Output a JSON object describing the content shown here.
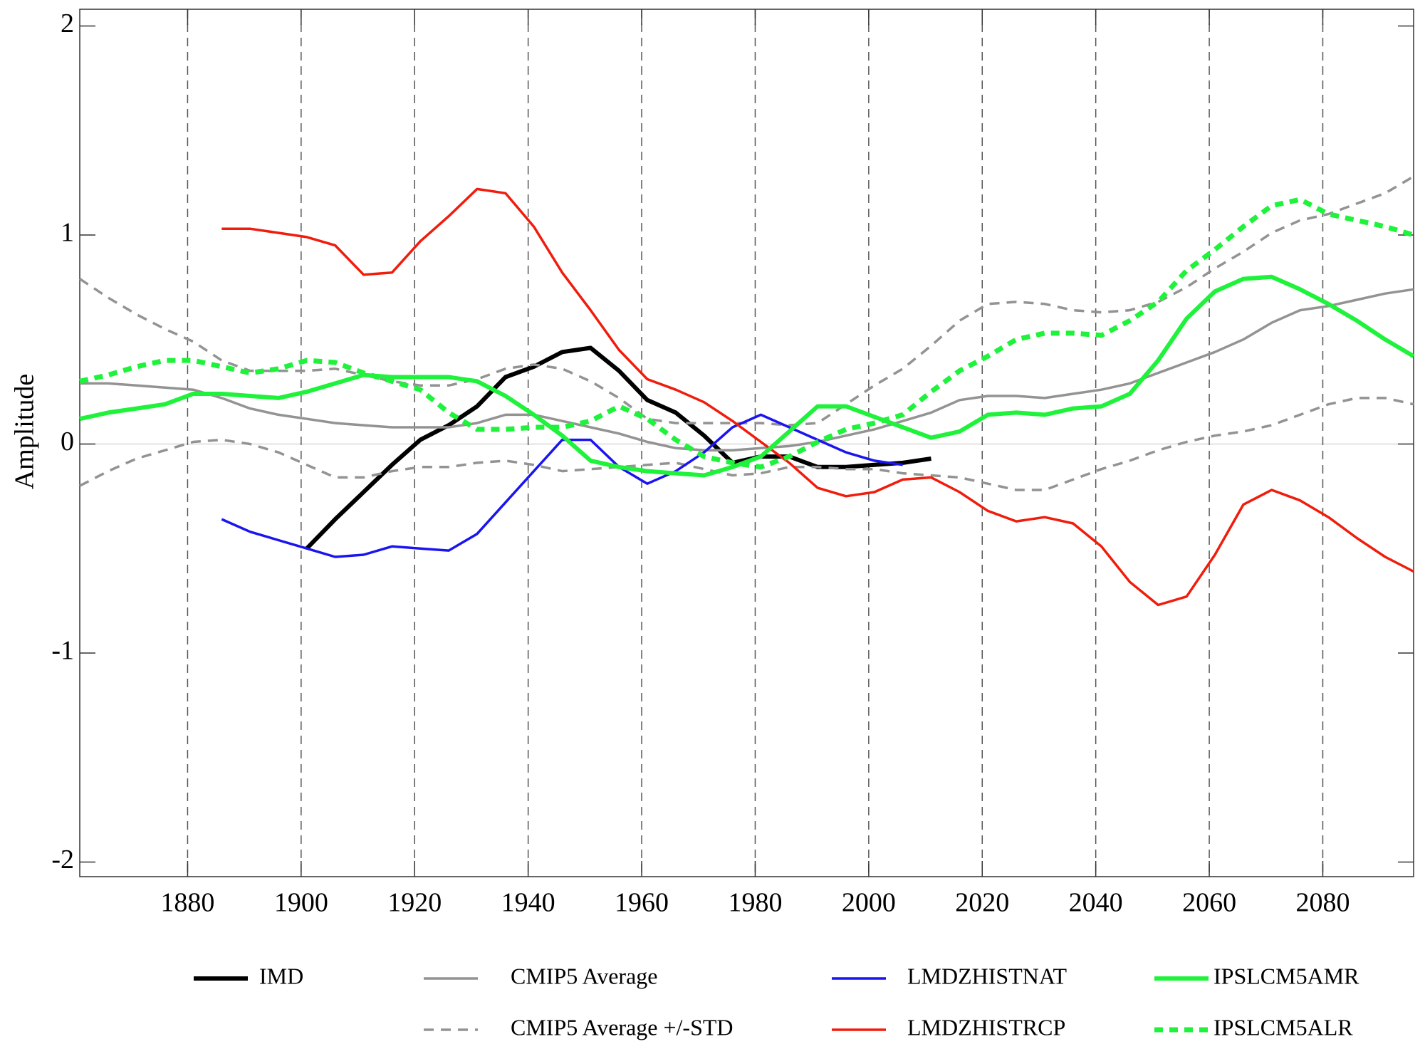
{
  "chart_data": {
    "type": "line",
    "y_label": "Amplitude",
    "x": [
      1861,
      1866,
      1871,
      1876,
      1881,
      1886,
      1891,
      1896,
      1901,
      1906,
      1911,
      1916,
      1921,
      1926,
      1931,
      1936,
      1941,
      1946,
      1951,
      1956,
      1961,
      1966,
      1971,
      1976,
      1981,
      1986,
      1991,
      1996,
      2001,
      2006,
      2011,
      2016,
      2021,
      2026,
      2031,
      2036,
      2041,
      2046,
      2051,
      2056,
      2061,
      2066,
      2071,
      2076,
      2081,
      2086,
      2091,
      2096
    ],
    "xlim": [
      1861,
      2096
    ],
    "xticks": [
      1880,
      1900,
      1920,
      1940,
      1960,
      1980,
      2000,
      2020,
      2040,
      2060,
      2080
    ],
    "ylim": [
      -2.07,
      2.08
    ],
    "yticks": [
      -2,
      -1,
      0,
      1,
      2
    ],
    "vertical_grid": true,
    "zero_line": true,
    "series": [
      {
        "name": "IMD",
        "color": "#000000",
        "linestyle": "thick",
        "values": [
          null,
          null,
          null,
          null,
          null,
          null,
          null,
          null,
          -0.5,
          -0.36,
          -0.23,
          -0.1,
          0.02,
          0.09,
          0.18,
          0.32,
          0.37,
          0.44,
          0.46,
          0.35,
          0.21,
          0.15,
          0.04,
          -0.09,
          -0.06,
          -0.06,
          -0.11,
          -0.11,
          -0.1,
          -0.09,
          -0.07,
          null,
          null,
          null,
          null,
          null,
          null,
          null,
          null,
          null,
          null,
          null,
          null,
          null,
          null,
          null,
          null,
          null
        ]
      },
      {
        "name": "CMIP5 Average",
        "color": "#939393",
        "linestyle": "thin",
        "values": [
          0.29,
          0.29,
          0.28,
          0.27,
          0.26,
          0.22,
          0.17,
          0.14,
          0.12,
          0.1,
          0.09,
          0.08,
          0.08,
          0.08,
          0.1,
          0.14,
          0.14,
          0.11,
          0.08,
          0.05,
          0.01,
          -0.02,
          -0.03,
          -0.03,
          -0.02,
          -0.01,
          0.01,
          0.04,
          0.07,
          0.11,
          0.15,
          0.21,
          0.23,
          0.23,
          0.22,
          0.24,
          0.26,
          0.29,
          0.34,
          0.39,
          0.44,
          0.5,
          0.58,
          0.64,
          0.66,
          0.69,
          0.72,
          0.74
        ]
      },
      {
        "name": "CMIP5 Average +/-STD",
        "color": "#939393",
        "linestyle": "dashed",
        "values": [
          0.79,
          0.7,
          0.62,
          0.55,
          0.49,
          0.4,
          0.35,
          0.35,
          0.35,
          0.36,
          0.33,
          0.3,
          0.28,
          0.28,
          0.31,
          0.36,
          0.38,
          0.36,
          0.3,
          0.22,
          0.12,
          0.1,
          0.1,
          0.1,
          0.1,
          0.09,
          0.1,
          0.19,
          0.28,
          0.36,
          0.47,
          0.59,
          0.67,
          0.68,
          0.67,
          0.64,
          0.63,
          0.64,
          0.68,
          0.75,
          0.84,
          0.92,
          1.01,
          1.07,
          1.1,
          1.15,
          1.2,
          1.28
        ]
      },
      {
        "name": "CMIP5 Average +/-STD",
        "color": "#939393",
        "linestyle": "dashed",
        "values": [
          -0.2,
          -0.13,
          -0.07,
          -0.03,
          0.01,
          0.02,
          0.0,
          -0.04,
          -0.1,
          -0.16,
          -0.16,
          -0.13,
          -0.11,
          -0.11,
          -0.09,
          -0.08,
          -0.1,
          -0.13,
          -0.12,
          -0.11,
          -0.1,
          -0.09,
          -0.12,
          -0.15,
          -0.14,
          -0.11,
          -0.11,
          -0.12,
          -0.12,
          -0.14,
          -0.15,
          -0.16,
          -0.19,
          -0.22,
          -0.22,
          -0.17,
          -0.12,
          -0.08,
          -0.03,
          0.01,
          0.04,
          0.06,
          0.09,
          0.14,
          0.19,
          0.22,
          0.22,
          0.19
        ]
      },
      {
        "name": "LMDZHISTNAT",
        "color": "#1a14f0",
        "linestyle": "thin",
        "values": [
          null,
          null,
          null,
          null,
          null,
          -0.36,
          -0.42,
          -0.46,
          -0.5,
          -0.54,
          -0.53,
          -0.49,
          -0.5,
          -0.51,
          -0.43,
          -0.28,
          -0.13,
          0.02,
          0.02,
          -0.11,
          -0.19,
          -0.13,
          -0.04,
          0.08,
          0.14,
          0.08,
          0.02,
          -0.04,
          -0.08,
          -0.1,
          null,
          null,
          null,
          null,
          null,
          null,
          null,
          null,
          null,
          null,
          null,
          null,
          null,
          null,
          null,
          null,
          null,
          null
        ]
      },
      {
        "name": "LMDZHISTRCP",
        "color": "#f01c0c",
        "linestyle": "thin",
        "values": [
          null,
          null,
          null,
          null,
          null,
          1.03,
          1.03,
          1.01,
          0.99,
          0.95,
          0.81,
          0.82,
          0.97,
          1.09,
          1.22,
          1.2,
          1.04,
          0.82,
          0.64,
          0.45,
          0.31,
          0.26,
          0.2,
          0.11,
          0.01,
          -0.09,
          -0.21,
          -0.25,
          -0.23,
          -0.17,
          -0.16,
          -0.23,
          -0.32,
          -0.37,
          -0.35,
          -0.38,
          -0.49,
          -0.66,
          -0.77,
          -0.73,
          -0.53,
          -0.29,
          -0.22,
          -0.27,
          -0.35,
          -0.45,
          -0.54,
          -0.61
        ]
      },
      {
        "name": "IPSLCM5AMR",
        "color": "#1ef23a",
        "linestyle": "thick",
        "values": [
          0.12,
          0.15,
          0.17,
          0.19,
          0.24,
          0.24,
          0.23,
          0.22,
          0.25,
          0.29,
          0.33,
          0.32,
          0.32,
          0.32,
          0.3,
          0.23,
          0.14,
          0.04,
          -0.08,
          -0.11,
          -0.13,
          -0.14,
          -0.15,
          -0.11,
          -0.06,
          0.06,
          0.18,
          0.18,
          0.13,
          0.08,
          0.03,
          0.06,
          0.14,
          0.15,
          0.14,
          0.17,
          0.18,
          0.24,
          0.4,
          0.6,
          0.73,
          0.79,
          0.8,
          0.74,
          0.67,
          0.59,
          0.5,
          0.42
        ]
      },
      {
        "name": "IPSLCM5ALR",
        "color": "#1ef23a",
        "linestyle": "thick-dotted",
        "values": [
          0.3,
          0.33,
          0.37,
          0.4,
          0.4,
          0.37,
          0.34,
          0.36,
          0.4,
          0.39,
          0.34,
          0.3,
          0.26,
          0.15,
          0.07,
          0.07,
          0.08,
          0.08,
          0.11,
          0.18,
          0.12,
          0.02,
          -0.06,
          -0.09,
          -0.11,
          -0.06,
          0.01,
          0.07,
          0.1,
          0.14,
          0.25,
          0.35,
          0.42,
          0.5,
          0.53,
          0.53,
          0.52,
          0.59,
          0.68,
          0.83,
          0.93,
          1.04,
          1.14,
          1.17,
          1.1,
          1.07,
          1.04,
          1.0
        ]
      }
    ]
  }
}
